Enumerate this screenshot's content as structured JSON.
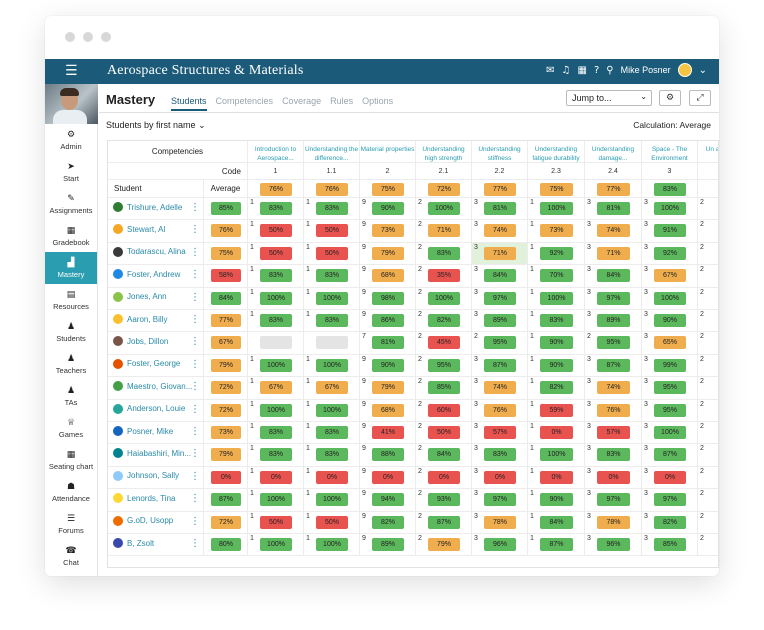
{
  "app": {
    "title": "Aerospace Structures & Materials",
    "user": "Mike Posner"
  },
  "sidebar": [
    {
      "label": "Admin",
      "icon": "gear-icon",
      "glyph": "⚙"
    },
    {
      "label": "Start",
      "icon": "arrow-icon",
      "glyph": "➤"
    },
    {
      "label": "Assignments",
      "icon": "assignments-icon",
      "glyph": "✎"
    },
    {
      "label": "Gradebook",
      "icon": "gradebook-icon",
      "glyph": "▦"
    },
    {
      "label": "Mastery",
      "icon": "chart-icon",
      "glyph": "▟",
      "active": true
    },
    {
      "label": "Resources",
      "icon": "resources-icon",
      "glyph": "▤"
    },
    {
      "label": "Students",
      "icon": "person-icon",
      "glyph": "♟"
    },
    {
      "label": "Teachers",
      "icon": "teachers-icon",
      "glyph": "♟"
    },
    {
      "label": "TAs",
      "icon": "tas-icon",
      "glyph": "♟"
    },
    {
      "label": "Games",
      "icon": "trophy-icon",
      "glyph": "♕"
    },
    {
      "label": "Seating chart",
      "icon": "seating-icon",
      "glyph": "▦"
    },
    {
      "label": "Attendance",
      "icon": "attendance-icon",
      "glyph": "☗"
    },
    {
      "label": "Forums",
      "icon": "forums-icon",
      "glyph": "☰"
    },
    {
      "label": "Chat",
      "icon": "chat-icon",
      "glyph": "☎"
    }
  ],
  "main": {
    "title": "Mastery",
    "tabs": [
      "Students",
      "Competencies",
      "Coverage",
      "Rules",
      "Options"
    ],
    "jump_to": "Jump to...",
    "filter": "Students by first name",
    "calculation": "Calculation: Average"
  },
  "table": {
    "competencies_label": "Competencies",
    "code_label": "Code",
    "student_label": "Student",
    "average_label": "Average",
    "columns": [
      {
        "title": "Introduction to Aerospace...",
        "code": "1",
        "average": "76%",
        "level": "o"
      },
      {
        "title": "Understanding the difference...",
        "code": "1.1",
        "average": "76%",
        "level": "o"
      },
      {
        "title": "Material properties",
        "code": "2",
        "average": "75%",
        "level": "o"
      },
      {
        "title": "Understanding high strength",
        "code": "2.1",
        "average": "72%",
        "level": "o"
      },
      {
        "title": "Understanding stiffness",
        "code": "2.2",
        "average": "77%",
        "level": "o"
      },
      {
        "title": "Understanding fatigue durability",
        "code": "2.3",
        "average": "75%",
        "level": "o"
      },
      {
        "title": "Understanding damage...",
        "code": "2.4",
        "average": "77%",
        "level": "o"
      },
      {
        "title": "Space - The Environment",
        "code": "3",
        "average": "83%",
        "level": "g"
      },
      {
        "title": "Un a",
        "code": "",
        "average": "",
        "level": ""
      }
    ],
    "students": [
      {
        "name": "Trishure, Adelle",
        "color": "#2e7d32",
        "avg": "85%",
        "avg_level": "g",
        "cells": [
          [
            "1",
            "83%",
            "g"
          ],
          [
            "1",
            "83%",
            "g"
          ],
          [
            "9",
            "90%",
            "g"
          ],
          [
            "2",
            "100%",
            "g"
          ],
          [
            "3",
            "81%",
            "g"
          ],
          [
            "1",
            "100%",
            "g"
          ],
          [
            "3",
            "81%",
            "g"
          ],
          [
            "3",
            "100%",
            "g"
          ],
          [
            "2",
            "",
            ""
          ]
        ]
      },
      {
        "name": "Stewart, Al",
        "color": "#f5a623",
        "avg": "76%",
        "avg_level": "o",
        "cells": [
          [
            "1",
            "50%",
            "r"
          ],
          [
            "1",
            "50%",
            "r"
          ],
          [
            "9",
            "73%",
            "o"
          ],
          [
            "2",
            "71%",
            "o"
          ],
          [
            "3",
            "74%",
            "o"
          ],
          [
            "1",
            "73%",
            "o"
          ],
          [
            "3",
            "74%",
            "o"
          ],
          [
            "3",
            "91%",
            "g"
          ],
          [
            "2",
            "",
            ""
          ]
        ]
      },
      {
        "name": "Todarascu, Alina",
        "color": "#3a3a3a",
        "avg": "75%",
        "avg_level": "o",
        "cells": [
          [
            "1",
            "50%",
            "r"
          ],
          [
            "1",
            "50%",
            "r"
          ],
          [
            "9",
            "79%",
            "o"
          ],
          [
            "2",
            "83%",
            "g"
          ],
          [
            "3",
            "71%",
            "o"
          ],
          [
            "1",
            "92%",
            "g"
          ],
          [
            "3",
            "71%",
            "o"
          ],
          [
            "3",
            "92%",
            "g"
          ],
          [
            "2",
            "",
            ""
          ]
        ]
      },
      {
        "name": "Foster, Andrew",
        "color": "#1e88e5",
        "avg": "58%",
        "avg_level": "r",
        "cells": [
          [
            "1",
            "83%",
            "g"
          ],
          [
            "1",
            "83%",
            "g"
          ],
          [
            "9",
            "68%",
            "o"
          ],
          [
            "2",
            "35%",
            "r"
          ],
          [
            "3",
            "84%",
            "g"
          ],
          [
            "1",
            "70%",
            "g"
          ],
          [
            "3",
            "84%",
            "g"
          ],
          [
            "3",
            "67%",
            "o"
          ],
          [
            "2",
            "",
            ""
          ]
        ]
      },
      {
        "name": "Jones, Ann",
        "color": "#8bc34a",
        "avg": "84%",
        "avg_level": "g",
        "cells": [
          [
            "1",
            "100%",
            "g"
          ],
          [
            "1",
            "100%",
            "g"
          ],
          [
            "9",
            "98%",
            "g"
          ],
          [
            "2",
            "100%",
            "g"
          ],
          [
            "3",
            "97%",
            "g"
          ],
          [
            "1",
            "100%",
            "g"
          ],
          [
            "3",
            "97%",
            "g"
          ],
          [
            "3",
            "100%",
            "g"
          ],
          [
            "2",
            "",
            ""
          ]
        ]
      },
      {
        "name": "Aaron, Billy",
        "color": "#fbc02d",
        "avg": "77%",
        "avg_level": "o",
        "cells": [
          [
            "1",
            "83%",
            "g"
          ],
          [
            "1",
            "83%",
            "g"
          ],
          [
            "9",
            "86%",
            "g"
          ],
          [
            "2",
            "82%",
            "g"
          ],
          [
            "3",
            "89%",
            "g"
          ],
          [
            "1",
            "83%",
            "g"
          ],
          [
            "3",
            "89%",
            "g"
          ],
          [
            "3",
            "90%",
            "g"
          ],
          [
            "2",
            "",
            ""
          ]
        ]
      },
      {
        "name": "Jobs, Dillon",
        "color": "#795548",
        "avg": "67%",
        "avg_level": "o",
        "cells": [
          [
            "",
            "",
            "e"
          ],
          [
            "",
            "",
            "e"
          ],
          [
            "7",
            "81%",
            "g"
          ],
          [
            "2",
            "45%",
            "r"
          ],
          [
            "2",
            "95%",
            "g"
          ],
          [
            "1",
            "90%",
            "g"
          ],
          [
            "2",
            "95%",
            "g"
          ],
          [
            "3",
            "65%",
            "o"
          ],
          [
            "2",
            "",
            ""
          ]
        ]
      },
      {
        "name": "Foster, George",
        "color": "#e65100",
        "avg": "79%",
        "avg_level": "o",
        "cells": [
          [
            "1",
            "100%",
            "g"
          ],
          [
            "1",
            "100%",
            "g"
          ],
          [
            "9",
            "90%",
            "g"
          ],
          [
            "2",
            "95%",
            "g"
          ],
          [
            "3",
            "87%",
            "g"
          ],
          [
            "1",
            "90%",
            "g"
          ],
          [
            "3",
            "87%",
            "g"
          ],
          [
            "3",
            "99%",
            "g"
          ],
          [
            "2",
            "",
            ""
          ]
        ]
      },
      {
        "name": "Maestro, Giovan...",
        "color": "#43a047",
        "avg": "72%",
        "avg_level": "o",
        "cells": [
          [
            "1",
            "67%",
            "o"
          ],
          [
            "1",
            "67%",
            "o"
          ],
          [
            "9",
            "79%",
            "o"
          ],
          [
            "2",
            "85%",
            "g"
          ],
          [
            "3",
            "74%",
            "o"
          ],
          [
            "1",
            "82%",
            "g"
          ],
          [
            "3",
            "74%",
            "o"
          ],
          [
            "3",
            "95%",
            "g"
          ],
          [
            "2",
            "",
            ""
          ]
        ]
      },
      {
        "name": "Anderson, Louie",
        "color": "#26a69a",
        "avg": "72%",
        "avg_level": "o",
        "cells": [
          [
            "1",
            "100%",
            "g"
          ],
          [
            "1",
            "100%",
            "g"
          ],
          [
            "9",
            "68%",
            "o"
          ],
          [
            "2",
            "60%",
            "r"
          ],
          [
            "3",
            "76%",
            "o"
          ],
          [
            "1",
            "59%",
            "r"
          ],
          [
            "3",
            "76%",
            "o"
          ],
          [
            "3",
            "95%",
            "g"
          ],
          [
            "2",
            "",
            ""
          ]
        ]
      },
      {
        "name": "Posner, Mike",
        "color": "#1565c0",
        "avg": "73%",
        "avg_level": "o",
        "cells": [
          [
            "1",
            "83%",
            "g"
          ],
          [
            "1",
            "83%",
            "g"
          ],
          [
            "9",
            "41%",
            "r"
          ],
          [
            "2",
            "50%",
            "r"
          ],
          [
            "3",
            "57%",
            "r"
          ],
          [
            "1",
            "0%",
            "r"
          ],
          [
            "3",
            "57%",
            "r"
          ],
          [
            "3",
            "100%",
            "g"
          ],
          [
            "2",
            "",
            ""
          ]
        ]
      },
      {
        "name": "Haiabashiri, Min...",
        "color": "#00838f",
        "avg": "79%",
        "avg_level": "o",
        "cells": [
          [
            "1",
            "83%",
            "g"
          ],
          [
            "1",
            "83%",
            "g"
          ],
          [
            "9",
            "88%",
            "g"
          ],
          [
            "2",
            "84%",
            "g"
          ],
          [
            "3",
            "83%",
            "g"
          ],
          [
            "1",
            "100%",
            "g"
          ],
          [
            "3",
            "83%",
            "g"
          ],
          [
            "3",
            "87%",
            "g"
          ],
          [
            "2",
            "",
            ""
          ]
        ]
      },
      {
        "name": "Johnson, Sally",
        "color": "#90caf9",
        "avg": "0%",
        "avg_level": "r",
        "cells": [
          [
            "1",
            "0%",
            "r"
          ],
          [
            "1",
            "0%",
            "r"
          ],
          [
            "9",
            "0%",
            "r"
          ],
          [
            "2",
            "0%",
            "r"
          ],
          [
            "3",
            "0%",
            "r"
          ],
          [
            "1",
            "0%",
            "r"
          ],
          [
            "3",
            "0%",
            "r"
          ],
          [
            "3",
            "0%",
            "r"
          ],
          [
            "2",
            "",
            ""
          ]
        ]
      },
      {
        "name": "Lenords, Tina",
        "color": "#fdd835",
        "avg": "87%",
        "avg_level": "g",
        "cells": [
          [
            "1",
            "100%",
            "g"
          ],
          [
            "1",
            "100%",
            "g"
          ],
          [
            "9",
            "94%",
            "g"
          ],
          [
            "2",
            "93%",
            "g"
          ],
          [
            "3",
            "97%",
            "g"
          ],
          [
            "1",
            "90%",
            "g"
          ],
          [
            "3",
            "97%",
            "g"
          ],
          [
            "3",
            "97%",
            "g"
          ],
          [
            "2",
            "",
            ""
          ]
        ]
      },
      {
        "name": "G.oD, Usopp",
        "color": "#ef6c00",
        "avg": "72%",
        "avg_level": "o",
        "cells": [
          [
            "1",
            "50%",
            "r"
          ],
          [
            "1",
            "50%",
            "r"
          ],
          [
            "9",
            "82%",
            "g"
          ],
          [
            "2",
            "87%",
            "g"
          ],
          [
            "3",
            "78%",
            "o"
          ],
          [
            "1",
            "84%",
            "g"
          ],
          [
            "3",
            "78%",
            "o"
          ],
          [
            "3",
            "82%",
            "g"
          ],
          [
            "2",
            "",
            ""
          ]
        ]
      },
      {
        "name": "B, Zsolt",
        "color": "#3949ab",
        "avg": "80%",
        "avg_level": "g",
        "cells": [
          [
            "1",
            "100%",
            "g"
          ],
          [
            "1",
            "100%",
            "g"
          ],
          [
            "9",
            "89%",
            "g"
          ],
          [
            "2",
            "79%",
            "o"
          ],
          [
            "3",
            "96%",
            "g"
          ],
          [
            "1",
            "87%",
            "g"
          ],
          [
            "3",
            "96%",
            "g"
          ],
          [
            "3",
            "85%",
            "g"
          ],
          [
            "2",
            "",
            ""
          ]
        ]
      }
    ]
  }
}
